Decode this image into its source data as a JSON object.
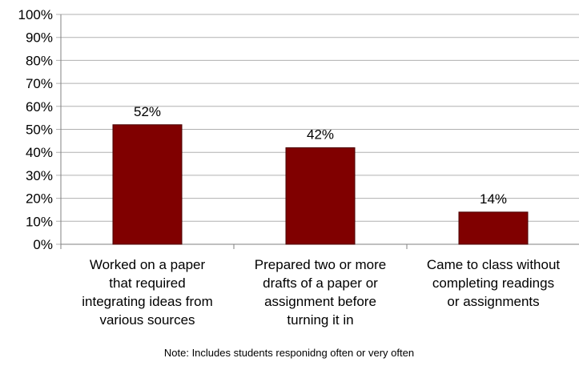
{
  "chart_data": {
    "type": "bar",
    "categories": [
      [
        "Worked on a paper",
        "that required",
        "integrating ideas from",
        "various sources"
      ],
      [
        "Prepared two or more",
        "drafts of a paper or",
        "assignment before",
        "turning it in"
      ],
      [
        "Came to class without",
        "completing readings",
        "or assignments"
      ]
    ],
    "values": [
      52,
      42,
      14
    ],
    "data_labels": [
      "52%",
      "42%",
      "14%"
    ],
    "ylim": [
      0,
      100
    ],
    "yticks": [
      "0%",
      "10%",
      "20%",
      "30%",
      "40%",
      "50%",
      "60%",
      "70%",
      "80%",
      "90%",
      "100%"
    ],
    "grid": true,
    "bar_color": "#800000",
    "bar_edge_color": "#4a0000",
    "grid_color": "#b0b0b0",
    "note": "Note: Includes students responidng often or very often"
  }
}
